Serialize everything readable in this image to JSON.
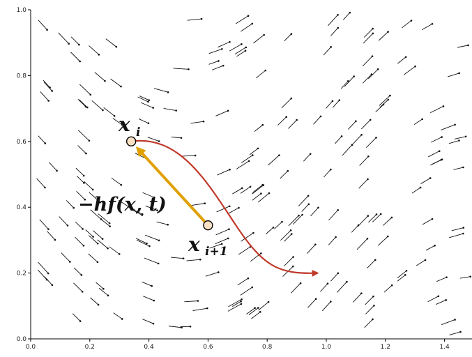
{
  "chart_data": {
    "type": "vector-field",
    "xlim": [
      0.0,
      1.5
    ],
    "ylim": [
      0.0,
      1.0
    ],
    "x_ticks": [
      "0.0",
      "0.2",
      "0.4",
      "0.6",
      "0.8",
      "1.0",
      "1.2",
      "1.4"
    ],
    "y_ticks": [
      "0.0",
      "0.2",
      "0.4",
      "0.6",
      "0.8",
      "1.0"
    ],
    "grid": false,
    "points": {
      "x_i": {
        "x": 0.34,
        "y": 0.6
      },
      "x_i_plus_1": {
        "x": 0.6,
        "y": 0.345
      }
    },
    "forward_path_end": {
      "x": 0.98,
      "y": 0.2
    },
    "colors": {
      "step_arrow": "#e0a000",
      "forward_path": "#c0392b",
      "point_fill": "#fbe1c4",
      "field": "#111111"
    }
  },
  "labels": {
    "x_i_base": "x",
    "x_i_sub": "i",
    "x_ip1_base": "x",
    "x_ip1_sub": "i+1",
    "step_text": "−hf(x, t)"
  }
}
